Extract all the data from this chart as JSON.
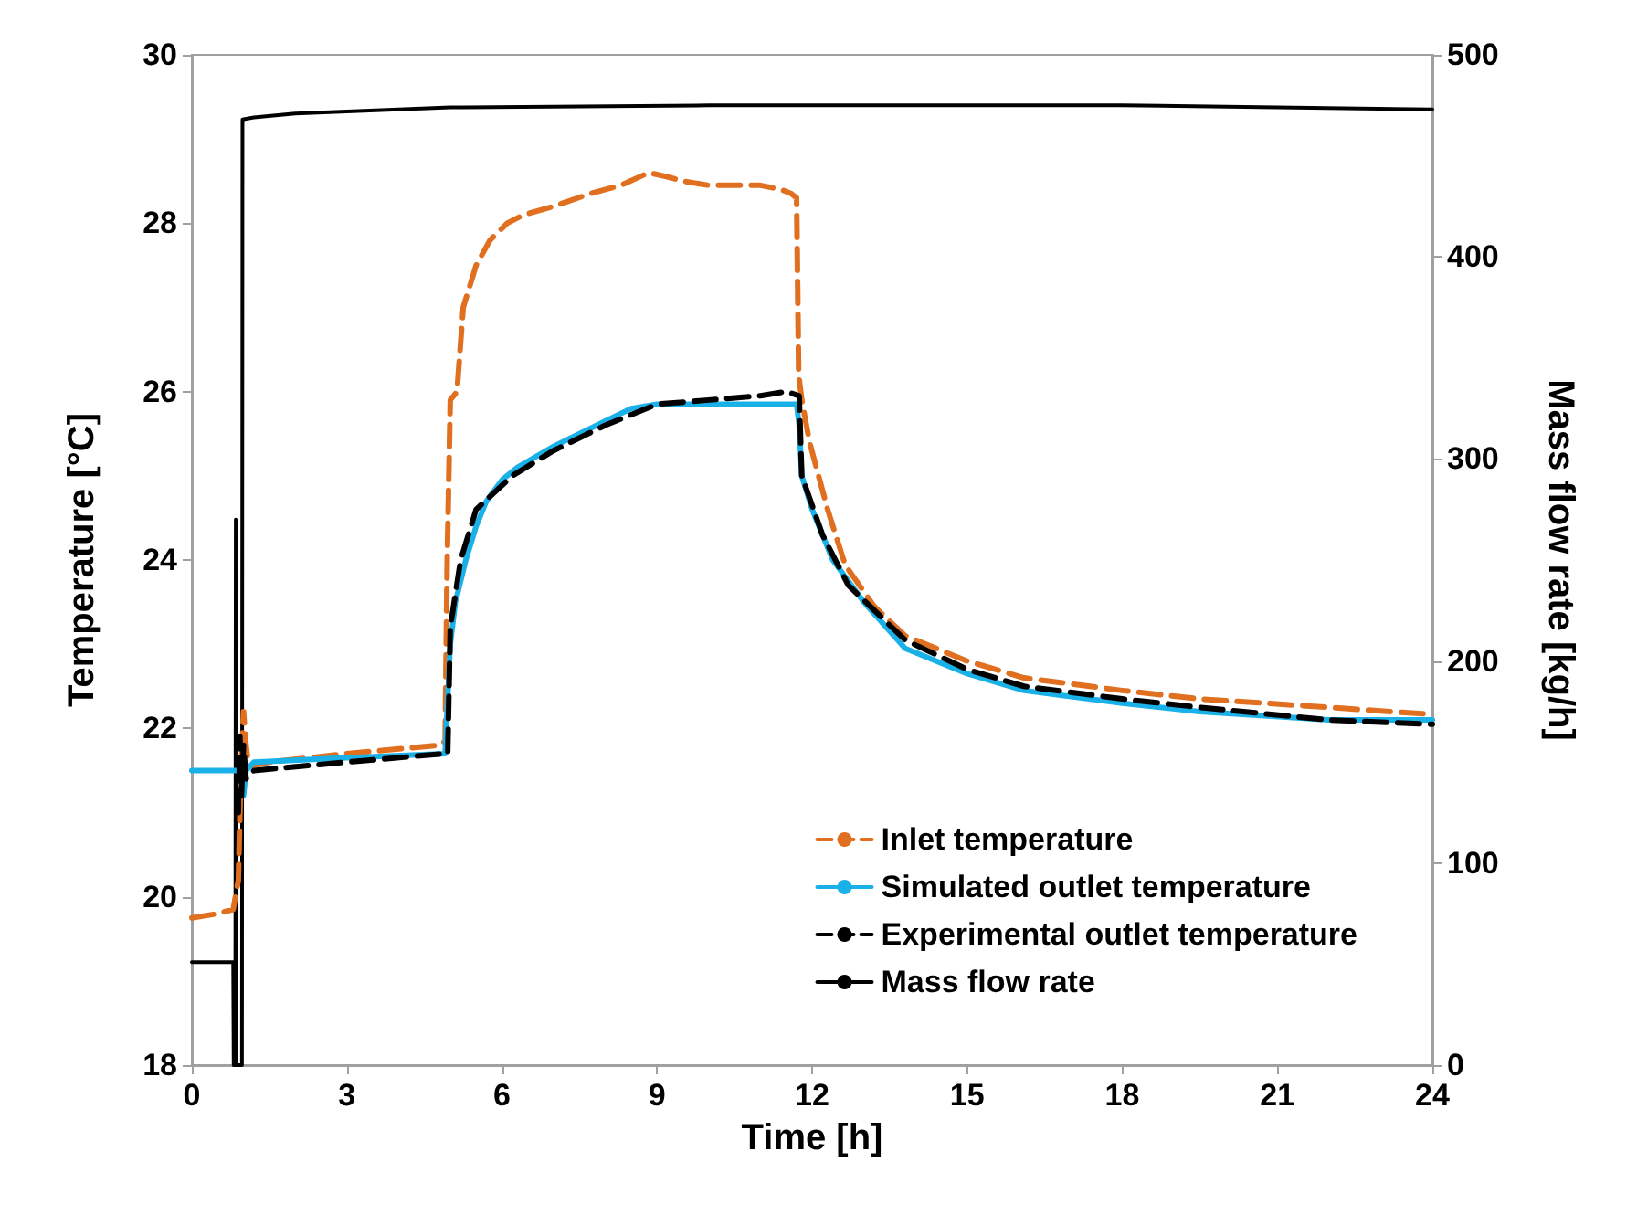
{
  "chart_data": {
    "type": "line",
    "xlabel": "Time [h]",
    "ylabel": "Temperature [°C]",
    "y2label": "Mass flow rate [kg/h]",
    "xlim": [
      0,
      24
    ],
    "xticks": [
      0,
      3,
      6,
      9,
      12,
      15,
      18,
      21,
      24
    ],
    "ylim": [
      18,
      30
    ],
    "yticks": [
      18,
      20,
      22,
      24,
      26,
      28,
      30
    ],
    "y2lim": [
      0,
      500
    ],
    "y2ticks": [
      0,
      100,
      200,
      300,
      400,
      500
    ],
    "grid": false,
    "legend": "bottom right",
    "marker": "none",
    "series": [
      {
        "name": "Inlet temperature",
        "color": "#e07020",
        "line_style": "dashed",
        "x": [
          0,
          0.5,
          0.8,
          0.9,
          0.95,
          1.0,
          1.05,
          1.1,
          1.5,
          3,
          4.8,
          4.9,
          4.94,
          5.0,
          5.13,
          5.25,
          5.5,
          5.77,
          6.1,
          6.42,
          7.0,
          7.7,
          8.3,
          8.84,
          9.2,
          9.5,
          10,
          11,
          11.4,
          11.6,
          11.7,
          11.74,
          11.8,
          11.95,
          12.3,
          12.64,
          13.2,
          13.8,
          15,
          16.1,
          18,
          19.5,
          22,
          23.9,
          24
        ],
        "values": [
          19.75,
          19.8,
          19.85,
          20.2,
          21.5,
          22.2,
          21.8,
          21.55,
          21.6,
          21.7,
          21.8,
          21.85,
          24.0,
          25.9,
          26.0,
          27.0,
          27.5,
          27.8,
          28.0,
          28.1,
          28.2,
          28.35,
          28.45,
          28.6,
          28.55,
          28.5,
          28.45,
          28.45,
          28.4,
          28.35,
          28.3,
          26.2,
          25.9,
          25.4,
          24.6,
          23.94,
          23.45,
          23.1,
          22.8,
          22.6,
          22.45,
          22.35,
          22.25,
          22.17,
          22.15
        ]
      },
      {
        "name": "Simulated outlet temperature",
        "color": "#1ab0e8",
        "line_style": "solid",
        "x": [
          0,
          0.9,
          0.95,
          1.0,
          1.05,
          1.2,
          3,
          4.9,
          5.0,
          5.1,
          5.3,
          5.5,
          5.7,
          6.0,
          6.3,
          7.0,
          7.5,
          8.5,
          9,
          10,
          11.7,
          11.75,
          11.8,
          12.0,
          12.4,
          13.0,
          13.8,
          15,
          16.1,
          18,
          19.5,
          22,
          24
        ],
        "values": [
          21.5,
          21.5,
          21.4,
          21.2,
          21.5,
          21.6,
          21.65,
          21.7,
          23.0,
          23.5,
          24.0,
          24.4,
          24.7,
          24.95,
          25.1,
          25.35,
          25.5,
          25.8,
          25.85,
          25.85,
          25.85,
          25.6,
          25.0,
          24.6,
          24.0,
          23.5,
          22.95,
          22.65,
          22.45,
          22.3,
          22.2,
          22.1,
          22.1
        ]
      },
      {
        "name": "Experimental outlet temperature",
        "color": "#000000",
        "line_style": "dashed",
        "x": [
          0.9,
          0.93,
          0.96,
          1.0,
          1.05,
          1.2,
          3,
          4.9,
          4.95,
          5.0,
          5.2,
          5.5,
          6.2,
          7,
          8,
          9,
          10,
          11,
          11.5,
          11.75,
          11.8,
          12.2,
          12.7,
          13.8,
          15,
          16.1,
          18,
          19.5,
          22,
          24
        ],
        "values": [
          21.0,
          21.9,
          21.2,
          21.8,
          21.4,
          21.5,
          21.6,
          21.7,
          21.7,
          23.2,
          24.0,
          24.6,
          25.0,
          25.3,
          25.6,
          25.85,
          25.9,
          25.95,
          26.0,
          25.95,
          25.0,
          24.3,
          23.7,
          23.05,
          22.7,
          22.5,
          22.35,
          22.25,
          22.1,
          22.05
        ]
      },
      {
        "name": "Mass flow rate",
        "color": "#000000",
        "line_style": "solid",
        "axis": "y2",
        "x": [
          0,
          0.8,
          0.81,
          0.84,
          0.85,
          0.86,
          0.97,
          0.98,
          1.2,
          2,
          3,
          5,
          10,
          18,
          24
        ],
        "values": [
          51,
          51,
          0,
          0,
          270,
          0,
          0,
          468,
          469,
          471,
          472,
          474,
          475,
          475,
          473
        ]
      }
    ]
  }
}
